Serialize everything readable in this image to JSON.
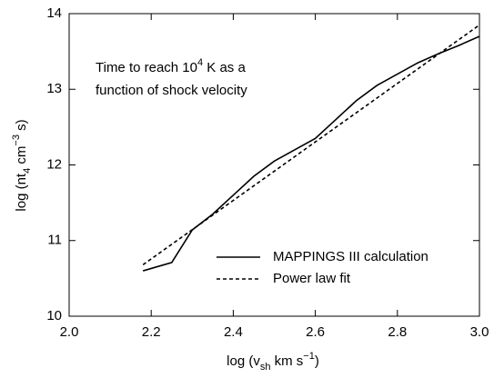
{
  "chart_data": {
    "type": "line",
    "annotation": [
      "Time to reach 10",
      "4",
      " K as a",
      "function of shock velocity"
    ],
    "x_label": [
      "log (v",
      "sh",
      "  km s",
      "−1",
      ")"
    ],
    "y_label": [
      "log (nt",
      "4",
      "  cm",
      "−3",
      " s)"
    ],
    "xlim": [
      2.0,
      3.0
    ],
    "xticks": [
      {
        "value": 2.0,
        "label": "2.0"
      },
      {
        "value": 2.2,
        "label": "2.2"
      },
      {
        "value": 2.4,
        "label": "2.4"
      },
      {
        "value": 2.6,
        "label": "2.6"
      },
      {
        "value": 2.8,
        "label": "2.8"
      },
      {
        "value": 3.0,
        "label": "3.0"
      }
    ],
    "ylim": [
      10,
      14
    ],
    "yticks": [
      10,
      11,
      12,
      13,
      14
    ],
    "legend": "lower right",
    "series": [
      {
        "name": "MAPPINGS III calculation",
        "color": "#000000",
        "dash": false,
        "x": [
          2.18,
          2.25,
          2.3,
          2.35,
          2.4,
          2.45,
          2.5,
          2.55,
          2.6,
          2.65,
          2.7,
          2.75,
          2.8,
          2.85,
          2.9,
          2.95,
          3.0
        ],
        "values": [
          10.6,
          10.71,
          11.14,
          11.35,
          11.6,
          11.85,
          12.05,
          12.2,
          12.35,
          12.6,
          12.85,
          13.05,
          13.2,
          13.35,
          13.47,
          13.58,
          13.7
        ]
      },
      {
        "name": "Power law fit",
        "color": "#000000",
        "dash": true,
        "x": [
          2.18,
          3.0
        ],
        "values": [
          10.68,
          13.85
        ]
      }
    ]
  }
}
